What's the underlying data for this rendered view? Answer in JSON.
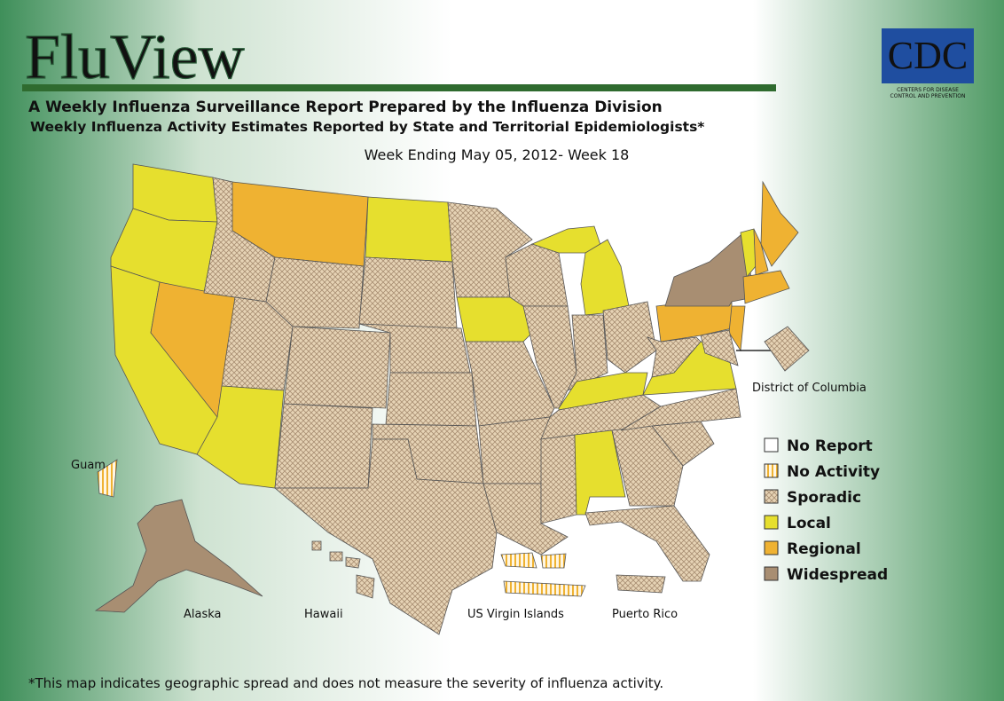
{
  "header": {
    "title": "FluView",
    "logo": "CDC",
    "logo_tagline": [
      "CENTERS FOR DISEASE",
      "CONTROL AND PREVENTION"
    ]
  },
  "report": {
    "title": "A Weekly Influenza Surveillance Report Prepared by the Influenza Division",
    "subtitle": "Weekly Influenza Activity Estimates Reported by State and Territorial Epidemiologists*",
    "week": "Week Ending May 05, 2012- Week 18"
  },
  "labels": {
    "dc": "District of Columbia",
    "guam": "Guam",
    "alaska": "Alaska",
    "hawaii": "Hawaii",
    "virgin_islands": "US Virgin Islands",
    "puerto_rico": "Puerto Rico"
  },
  "legend": {
    "items": [
      "No Report",
      "No Activity",
      "Sporadic",
      "Local",
      "Regional",
      "Widespread"
    ]
  },
  "footnote": "*This map indicates geographic spread and does not measure the severity of influenza activity."
}
